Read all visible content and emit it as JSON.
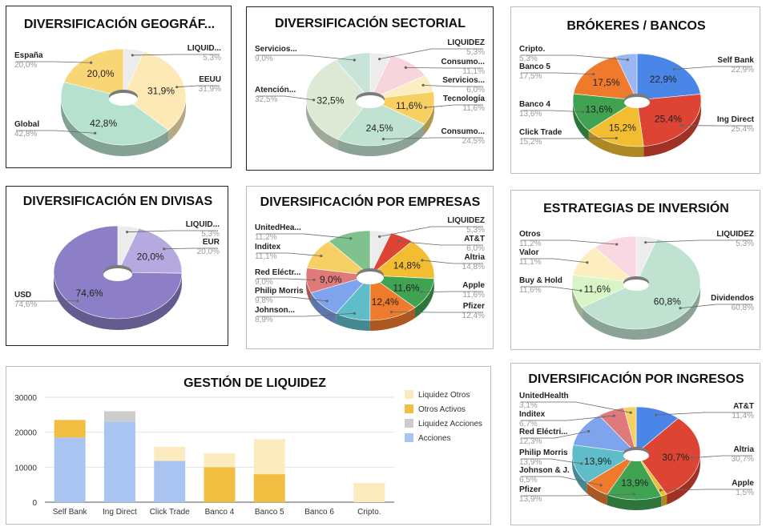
{
  "pies": [
    {
      "id": "p1",
      "chart_data": {
        "type": "pie",
        "title": "DIVERSIFICACIÓN GEOGRÁF...",
        "slices": [
          {
            "label": "LIQUID...",
            "value": 5.3,
            "pct": "5,3%",
            "color": "#ececec",
            "showPct": false
          },
          {
            "label": "EEUU",
            "value": 31.9,
            "pct": "31,9%",
            "color": "#fde9b6",
            "showPct": true
          },
          {
            "label": "Global",
            "value": 42.8,
            "pct": "42,8%",
            "color": "#b6e1ce",
            "showPct": true
          },
          {
            "label": "España",
            "value": 20.0,
            "pct": "20,0%",
            "color": "#f8d675",
            "showPct": true
          }
        ]
      }
    },
    {
      "id": "p2",
      "chart_data": {
        "type": "pie",
        "title": "DIVERSIFICACIÓN SECTORIAL",
        "slices": [
          {
            "label": "LIQUIDEZ",
            "value": 5.3,
            "pct": "5,3%",
            "color": "#ececec",
            "showPct": false
          },
          {
            "label": "Consumo...",
            "value": 11.1,
            "pct": "11,1%",
            "color": "#f8d4dc",
            "showPct": false
          },
          {
            "label": "Servicios...",
            "value": 6.0,
            "pct": "6,0%",
            "color": "#fbeec0",
            "showPct": false
          },
          {
            "label": "Tecnología",
            "value": 11.6,
            "pct": "11,6%",
            "color": "#f8d062",
            "showPct": true
          },
          {
            "label": "Consumo...",
            "value": 24.5,
            "pct": "24,5%",
            "color": "#bfe3d0",
            "showPct": true
          },
          {
            "label": "Atención...",
            "value": 32.5,
            "pct": "32,5%",
            "color": "#dde9d5",
            "showPct": true
          },
          {
            "label": "Servicios...",
            "value": 9.0,
            "pct": "9,0%",
            "color": "#c8e4d8",
            "showPct": false
          }
        ]
      }
    },
    {
      "id": "p3",
      "chart_data": {
        "type": "pie",
        "title": "BRÓKERES  / BANCOS",
        "slices": [
          {
            "label": "Self Bank",
            "value": 22.9,
            "pct": "22,9%",
            "color": "#4a86e8",
            "showPct": true
          },
          {
            "label": "Ing Direct",
            "value": 25.4,
            "pct": "25,4%",
            "color": "#dd4433",
            "showPct": true
          },
          {
            "label": "Click Trade",
            "value": 15.2,
            "pct": "15,2%",
            "color": "#f2bd30",
            "showPct": true
          },
          {
            "label": "Banco 4",
            "value": 13.6,
            "pct": "13,6%",
            "color": "#3fa352",
            "showPct": true
          },
          {
            "label": "Banco 5",
            "value": 17.5,
            "pct": "17,5%",
            "color": "#ef7a2c",
            "showPct": true
          },
          {
            "label": "Cripto.",
            "value": 5.3,
            "pct": "5,3%",
            "color": "#9ab6f3",
            "showPct": false
          }
        ]
      }
    },
    {
      "id": "p4",
      "chart_data": {
        "type": "pie",
        "title": "DIVERSIFICACIÓN EN DIVISAS",
        "slices": [
          {
            "label": "LIQUID...",
            "value": 5.3,
            "pct": "5,3%",
            "color": "#ececec",
            "showPct": false
          },
          {
            "label": "EUR",
            "value": 20.0,
            "pct": "20,0%",
            "color": "#b5a9e0",
            "showPct": true
          },
          {
            "label": "USD",
            "value": 74.6,
            "pct": "74,6%",
            "color": "#8d7fc7",
            "showPct": true
          }
        ]
      }
    },
    {
      "id": "p5",
      "chart_data": {
        "type": "pie",
        "title": "DIVERSIFICACIÓN POR EMPRESAS",
        "slices": [
          {
            "label": "LIQUIDEZ",
            "value": 5.3,
            "pct": "5,3%",
            "color": "#ececec",
            "showPct": false
          },
          {
            "label": "AT&T",
            "value": 6.0,
            "pct": "6,0%",
            "color": "#dd4433",
            "showPct": false
          },
          {
            "label": "Altria",
            "value": 14.8,
            "pct": "14,8%",
            "color": "#f2bd30",
            "showPct": true
          },
          {
            "label": "Apple",
            "value": 11.6,
            "pct": "11,6%",
            "color": "#3fa352",
            "showPct": true
          },
          {
            "label": "Pfizer",
            "value": 12.4,
            "pct": "12,4%",
            "color": "#ef7a2c",
            "showPct": true
          },
          {
            "label": "Johnson...",
            "value": 8.9,
            "pct": "8,9%",
            "color": "#5ebdc8",
            "showPct": false
          },
          {
            "label": "Philip Morris",
            "value": 9.8,
            "pct": "9,8%",
            "color": "#7fa4ee",
            "showPct": false
          },
          {
            "label": "Red Eléctr...",
            "value": 9.0,
            "pct": "9,0%",
            "color": "#e07a7a",
            "showPct": true
          },
          {
            "label": "Inditex",
            "value": 11.1,
            "pct": "11,1%",
            "color": "#f6d065",
            "showPct": false
          },
          {
            "label": "UnitedHea...",
            "value": 11.2,
            "pct": "11,2%",
            "color": "#7fc28e",
            "showPct": false
          }
        ]
      }
    },
    {
      "id": "p6",
      "chart_data": {
        "type": "pie",
        "title": "ESTRATEGIAS DE INVERSIÓN",
        "slices": [
          {
            "label": "LIQUIDEZ",
            "value": 5.3,
            "pct": "5,3%",
            "color": "#ececec",
            "showPct": false
          },
          {
            "label": "Dividendos",
            "value": 60.8,
            "pct": "60,8%",
            "color": "#bfe3d0",
            "showPct": true
          },
          {
            "label": "Buy & Hold",
            "value": 11.6,
            "pct": "11,6%",
            "color": "#d9f5c8",
            "showPct": true
          },
          {
            "label": "Valor",
            "value": 11.1,
            "pct": "11,1%",
            "color": "#fdeebf",
            "showPct": false
          },
          {
            "label": "Otros",
            "value": 11.2,
            "pct": "11,2%",
            "color": "#f9d8e2",
            "showPct": false
          }
        ]
      }
    },
    {
      "id": "p8",
      "chart_data": {
        "type": "pie",
        "title": "DIVERSIFICACIÓN POR INGRESOS",
        "slices": [
          {
            "label": "AT&T",
            "value": 11.4,
            "pct": "11,4%",
            "color": "#4a86e8",
            "showPct": false
          },
          {
            "label": "Altria",
            "value": 30.7,
            "pct": "30,7%",
            "color": "#dd4433",
            "showPct": true
          },
          {
            "label": "Apple",
            "value": 1.5,
            "pct": "1,5%",
            "color": "#f2bd30",
            "showPct": false
          },
          {
            "label": "Pfizer",
            "value": 13.9,
            "pct": "13,9%",
            "color": "#3fa352",
            "showPct": true
          },
          {
            "label": "Johnson & J.",
            "value": 6.5,
            "pct": "6,5%",
            "color": "#ef7a2c",
            "showPct": false
          },
          {
            "label": "Philip Morris",
            "value": 13.9,
            "pct": "13,9%",
            "color": "#5ebdc8",
            "showPct": true
          },
          {
            "label": "Red Eléctri...",
            "value": 12.3,
            "pct": "12,3%",
            "color": "#7fa4ee",
            "showPct": false
          },
          {
            "label": "Inditex",
            "value": 6.7,
            "pct": "6,7%",
            "color": "#e07a7a",
            "showPct": false
          },
          {
            "label": "UnitedHealth",
            "value": 3.1,
            "pct": "3,1%",
            "color": "#f6d065",
            "showPct": false
          }
        ]
      }
    }
  ],
  "bar": {
    "id": "p7",
    "chart_data": {
      "type": "bar",
      "stacked": true,
      "title": "GESTIÓN DE LIQUIDEZ",
      "categories": [
        "Self Bank",
        "Ing Direct",
        "Click Trade",
        "Banco 4",
        "Banco 5",
        "Banco 6",
        "Cripto."
      ],
      "ylim": [
        0,
        30000
      ],
      "yticks": [
        "0",
        "10000",
        "20000",
        "30000"
      ],
      "grid": true,
      "legend_position": "right",
      "series": [
        {
          "name": "Acciones",
          "color": "#a9c4f0",
          "values": [
            18500,
            23000,
            11800,
            0,
            0,
            0,
            0
          ]
        },
        {
          "name": "Liquidez Acciones",
          "color": "#cccccc",
          "values": [
            0,
            3000,
            0,
            0,
            0,
            0,
            0
          ]
        },
        {
          "name": "Otros Activos",
          "color": "#f1be42",
          "values": [
            5000,
            0,
            0,
            10000,
            8000,
            0,
            0
          ]
        },
        {
          "name": "Liquidez Otros",
          "color": "#fdebc0",
          "values": [
            0,
            0,
            4000,
            4000,
            10000,
            0,
            5500
          ]
        }
      ],
      "legend_order": [
        "Liquidez Otros",
        "Otros Activos",
        "Liquidez Acciones",
        "Acciones"
      ]
    }
  }
}
